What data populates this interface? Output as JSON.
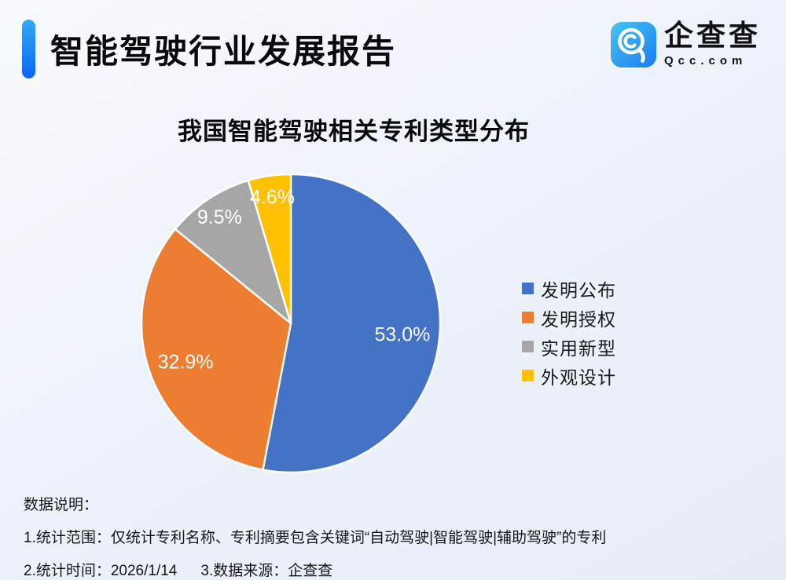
{
  "header": {
    "title": "智能驾驶行业发展报告",
    "logo": {
      "name_cn": "企查查",
      "domain": "Qcc.com"
    }
  },
  "chart_data": {
    "type": "pie",
    "title": "我国智能驾驶相关专利类型分布",
    "categories": [
      "发明公布",
      "发明授权",
      "实用新型",
      "外观设计"
    ],
    "values": [
      53.0,
      32.9,
      9.5,
      4.6
    ],
    "unit": "%",
    "colors": [
      "#4472C4",
      "#ED7D31",
      "#A6A6A6",
      "#FFC000"
    ],
    "start_angle_deg": 0,
    "direction": "clockwise",
    "legend_position": "right",
    "label_radius": [
      0.75,
      0.75,
      0.86,
      0.86
    ],
    "slice_border_color": "#FFFFFF"
  },
  "notes": {
    "heading": "数据说明：",
    "line1": "1.统计范围：仅统计专利名称、专利摘要包含关键词“自动驾驶|智能驾驶|辅助驾驶”的专利",
    "line2a": "2.统计时间：2026/1/14",
    "line2b": "3.数据来源：企查查"
  },
  "accent_color": "#0B63F6",
  "background_color": "#EEF2FA"
}
